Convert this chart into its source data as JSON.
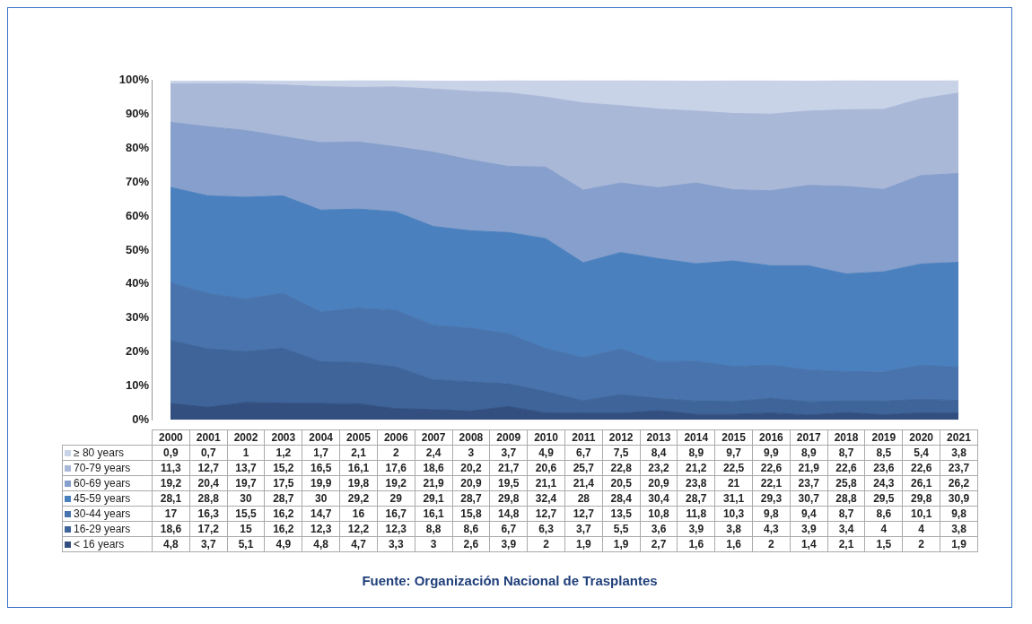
{
  "chart_data": {
    "type": "area",
    "stacked": true,
    "categories": [
      "2000",
      "2001",
      "2002",
      "2003",
      "2004",
      "2005",
      "2006",
      "2007",
      "2008",
      "2009",
      "2010",
      "2011",
      "2012",
      "2013",
      "2014",
      "2015",
      "2016",
      "2017",
      "2018",
      "2019",
      "2020",
      "2021"
    ],
    "ylim": [
      0,
      100
    ],
    "yticks": [
      {
        "value": 0,
        "label": "0%"
      },
      {
        "value": 10,
        "label": "10%"
      },
      {
        "value": 20,
        "label": "20%"
      },
      {
        "value": 30,
        "label": "30%"
      },
      {
        "value": 40,
        "label": "40%"
      },
      {
        "value": 50,
        "label": "50%"
      },
      {
        "value": 60,
        "label": "60%"
      },
      {
        "value": 70,
        "label": "70%"
      },
      {
        "value": 80,
        "label": "80%"
      },
      {
        "value": 90,
        "label": "90%"
      },
      {
        "value": 100,
        "label": "100%"
      }
    ],
    "grid": false,
    "legend": "bottom",
    "series": [
      {
        "name": "< 16 years",
        "color": "#324f80",
        "values": [
          4.8,
          3.7,
          5.1,
          4.9,
          4.8,
          4.7,
          3.3,
          3,
          2.6,
          3.9,
          2,
          1.9,
          1.9,
          2.7,
          1.6,
          1.6,
          2,
          1.4,
          2.1,
          1.5,
          2,
          1.9
        ],
        "value_labels": [
          "4,8",
          "3,7",
          "5,1",
          "4,9",
          "4,8",
          "4,7",
          "3,3",
          "3",
          "2,6",
          "3,9",
          "2",
          "1,9",
          "1,9",
          "2,7",
          "1,6",
          "1,6",
          "2",
          "1,4",
          "2,1",
          "1,5",
          "2",
          "1,9"
        ]
      },
      {
        "name": "16-29 years",
        "color": "#3e6499",
        "values": [
          18.6,
          17.2,
          15,
          16.2,
          12.3,
          12.2,
          12.3,
          8.8,
          8.6,
          6.7,
          6.3,
          3.7,
          5.5,
          3.6,
          3.9,
          3.8,
          4.3,
          3.9,
          3.4,
          4,
          4,
          3.8
        ],
        "value_labels": [
          "18,6",
          "17,2",
          "15",
          "16,2",
          "12,3",
          "12,2",
          "12,3",
          "8,8",
          "8,6",
          "6,7",
          "6,3",
          "3,7",
          "5,5",
          "3,6",
          "3,9",
          "3,8",
          "4,3",
          "3,9",
          "3,4",
          "4",
          "4",
          "3,8"
        ]
      },
      {
        "name": "30-44 years",
        "color": "#4873ad",
        "values": [
          17,
          16.3,
          15.5,
          16.2,
          14.7,
          16,
          16.7,
          16.1,
          15.8,
          14.8,
          12.7,
          12.7,
          13.5,
          10.8,
          11.8,
          10.3,
          9.8,
          9.4,
          8.7,
          8.6,
          10.1,
          9.8
        ],
        "value_labels": [
          "17",
          "16,3",
          "15,5",
          "16,2",
          "14,7",
          "16",
          "16,7",
          "16,1",
          "15,8",
          "14,8",
          "12,7",
          "12,7",
          "13,5",
          "10,8",
          "11,8",
          "10,3",
          "9,8",
          "9,4",
          "8,7",
          "8,6",
          "10,1",
          "9,8"
        ]
      },
      {
        "name": "45-59 years",
        "color": "#4a80be",
        "values": [
          28.1,
          28.8,
          30,
          28.7,
          30,
          29.2,
          29,
          29.1,
          28.7,
          29.8,
          32.4,
          28,
          28.4,
          30.4,
          28.7,
          31.1,
          29.3,
          30.7,
          28.8,
          29.5,
          29.8,
          30.9
        ],
        "value_labels": [
          "28,1",
          "28,8",
          "30",
          "28,7",
          "30",
          "29,2",
          "29",
          "29,1",
          "28,7",
          "29,8",
          "32,4",
          "28",
          "28,4",
          "30,4",
          "28,7",
          "31,1",
          "29,3",
          "30,7",
          "28,8",
          "29,5",
          "29,8",
          "30,9"
        ]
      },
      {
        "name": "60-69 years",
        "color": "#869fcc",
        "values": [
          19.2,
          20.4,
          19.7,
          17.5,
          19.9,
          19.8,
          19.2,
          21.9,
          20.9,
          19.5,
          21.1,
          21.4,
          20.5,
          20.9,
          23.8,
          21,
          22.1,
          23.7,
          25.8,
          24.3,
          26.1,
          26.2
        ],
        "value_labels": [
          "19,2",
          "20,4",
          "19,7",
          "17,5",
          "19,9",
          "19,8",
          "19,2",
          "21,9",
          "20,9",
          "19,5",
          "21,1",
          "21,4",
          "20,5",
          "20,9",
          "23,8",
          "21",
          "22,1",
          "23,7",
          "25,8",
          "24,3",
          "26,1",
          "26,2"
        ]
      },
      {
        "name": "70-79 years",
        "color": "#aab8d8",
        "values": [
          11.3,
          12.7,
          13.7,
          15.2,
          16.5,
          16.1,
          17.6,
          18.6,
          20.2,
          21.7,
          20.6,
          25.7,
          22.8,
          23.2,
          21.2,
          22.5,
          22.6,
          21.9,
          22.6,
          23.6,
          22.6,
          23.7
        ],
        "value_labels": [
          "11,3",
          "12,7",
          "13,7",
          "15,2",
          "16,5",
          "16,1",
          "17,6",
          "18,6",
          "20,2",
          "21,7",
          "20,6",
          "25,7",
          "22,8",
          "23,2",
          "21,2",
          "22,5",
          "22,6",
          "21,9",
          "22,6",
          "23,6",
          "22,6",
          "23,7"
        ]
      },
      {
        "name": "≥ 80 years",
        "color": "#c9d3e8",
        "values": [
          0.9,
          0.7,
          1,
          1.2,
          1.7,
          2.1,
          2,
          2.4,
          3,
          3.7,
          4.9,
          6.7,
          7.5,
          8.4,
          8.9,
          9.7,
          9.9,
          8.9,
          8.7,
          8.5,
          5.4,
          3.8
        ],
        "value_labels": [
          "0,9",
          "0,7",
          "1",
          "1,2",
          "1,7",
          "2,1",
          "2",
          "2,4",
          "3",
          "3,7",
          "4,9",
          "6,7",
          "7,5",
          "8,4",
          "8,9",
          "9,7",
          "9,9",
          "8,9",
          "8,7",
          "8,5",
          "5,4",
          "3,8"
        ]
      }
    ],
    "annotations": [
      "Fuente: Organización Nacional de Trasplantes"
    ]
  }
}
